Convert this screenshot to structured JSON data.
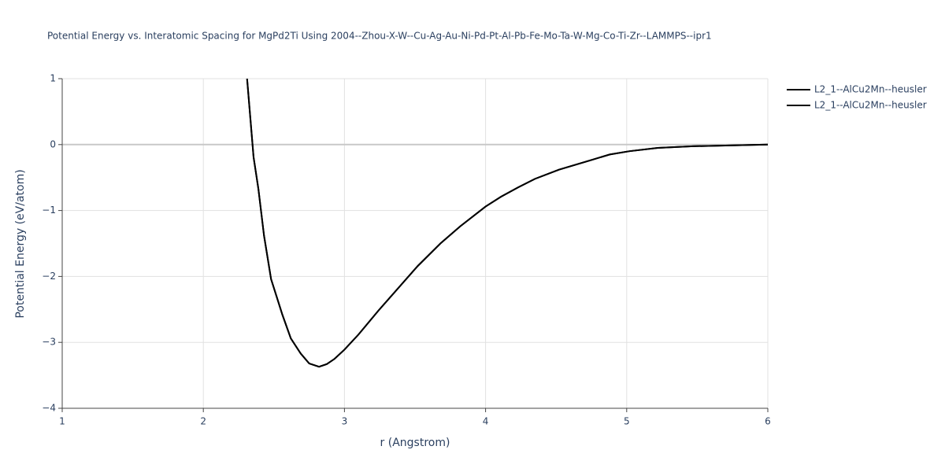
{
  "chart_data": {
    "type": "line",
    "title": "Potential Energy vs. Interatomic Spacing for MgPd2Ti Using 2004--Zhou-X-W--Cu-Ag-Au-Ni-Pd-Pt-Al-Pb-Fe-Mo-Ta-W-Mg-Co-Ti-Zr--LAMMPS--ipr1",
    "x_label": "r (Angstrom)",
    "y_label": "Potential Energy (eV/atom)",
    "x": [
      2.31,
      2.356,
      2.39,
      2.43,
      2.48,
      2.56,
      2.62,
      2.69,
      2.75,
      2.82,
      2.875,
      2.93,
      3.0,
      3.1,
      3.24,
      3.52,
      3.68,
      3.82,
      4.0,
      4.11,
      4.23,
      4.35,
      4.52,
      4.74,
      4.88,
      5.02,
      5.22,
      5.47,
      6.0
    ],
    "series": [
      {
        "name": "L2_1--AlCu2Mn--heusler",
        "color": "#000000",
        "values": [
          1,
          -0.19,
          -0.67,
          -1.38,
          -2.04,
          -2.58,
          -2.94,
          -3.17,
          -3.32,
          -3.37,
          -3.33,
          -3.25,
          -3.11,
          -2.88,
          -2.52,
          -1.84,
          -1.5,
          -1.24,
          -0.94,
          -0.79,
          -0.65,
          -0.52,
          -0.38,
          -0.24,
          -0.15,
          -0.1,
          -0.05,
          -0.025,
          0
        ]
      },
      {
        "name": "L2_1--AlCu2Mn--heusler",
        "color": "#000000",
        "values": [
          1,
          -0.19,
          -0.67,
          -1.38,
          -2.04,
          -2.58,
          -2.94,
          -3.17,
          -3.32,
          -3.37,
          -3.33,
          -3.25,
          -3.11,
          -2.88,
          -2.52,
          -1.84,
          -1.5,
          -1.24,
          -0.94,
          -0.79,
          -0.65,
          -0.52,
          -0.38,
          -0.24,
          -0.15,
          -0.1,
          -0.05,
          -0.025,
          0
        ]
      }
    ],
    "xlim": [
      1,
      6
    ],
    "xticks": [
      1,
      2,
      3,
      4,
      5,
      6
    ],
    "ylim": [
      -4,
      1
    ],
    "yticks": [
      {
        "value": -4,
        "label": "−4"
      },
      {
        "value": -3,
        "label": "−3"
      },
      {
        "value": -2,
        "label": "−2"
      },
      {
        "value": -1,
        "label": "−1"
      },
      0,
      1
    ],
    "grid": true,
    "legend": "right"
  }
}
